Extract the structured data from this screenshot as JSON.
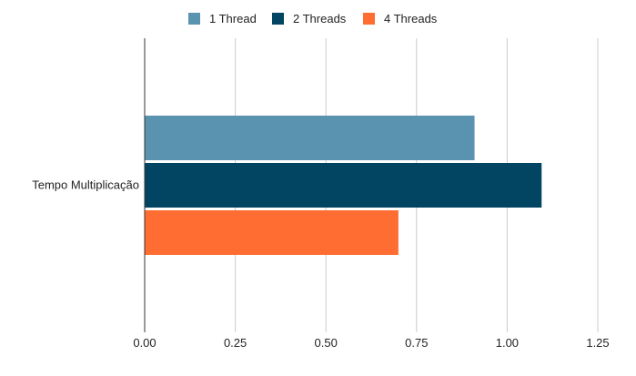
{
  "chart_data": {
    "type": "bar",
    "orientation": "horizontal",
    "categories": [
      "Tempo Multiplicação"
    ],
    "series": [
      {
        "name": "1 Thread",
        "values": [
          0.91
        ],
        "color": "#5a93b0"
      },
      {
        "name": "2 Threads",
        "values": [
          1.095
        ],
        "color": "#024563"
      },
      {
        "name": "4 Threads",
        "values": [
          0.7
        ],
        "color": "#ff6d33"
      }
    ],
    "xlim": [
      0,
      1.25
    ],
    "xticks": [
      "0.00",
      "0.25",
      "0.50",
      "0.75",
      "1.00",
      "1.25"
    ],
    "tick_values": [
      0,
      0.25,
      0.5,
      0.75,
      1.0,
      1.25
    ],
    "grid": true,
    "legend_position": "top-center"
  }
}
